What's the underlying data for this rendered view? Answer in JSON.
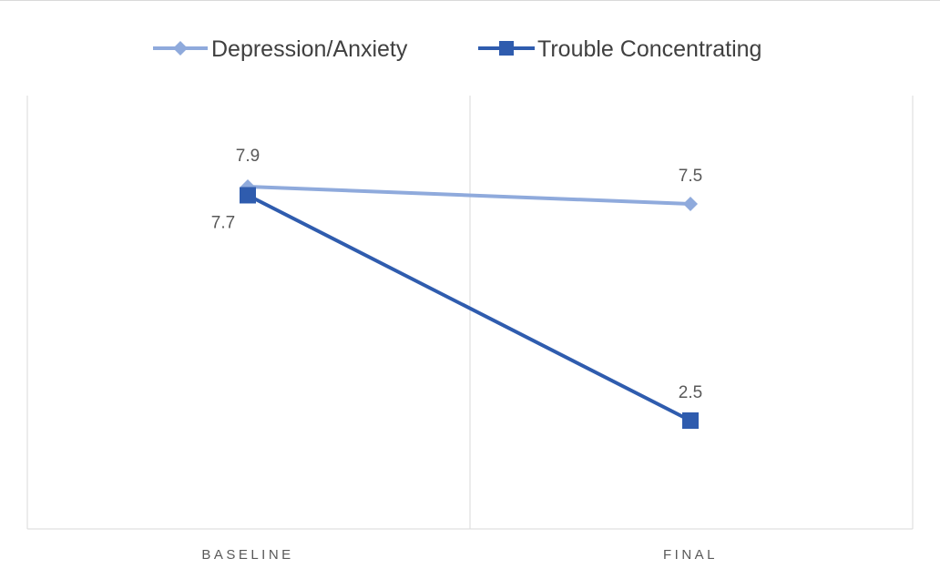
{
  "chart_data": {
    "type": "line",
    "title": "",
    "xlabel": "",
    "ylabel": "",
    "categories": [
      "BASELINE",
      "FINAL"
    ],
    "ylim": [
      0,
      10
    ],
    "grid": "vertical category gridlines",
    "legend": "top",
    "series": [
      {
        "name": "Depression/Anxiety",
        "values": [
          7.9,
          7.5
        ],
        "data_labels": [
          "7.9",
          "7.5"
        ],
        "color": "#8faadc",
        "marker": "diamond"
      },
      {
        "name": "Trouble Concentrating",
        "values": [
          7.7,
          2.5
        ],
        "data_labels": [
          "7.7",
          "2.5"
        ],
        "color": "#2f5cae",
        "marker": "square"
      }
    ]
  }
}
